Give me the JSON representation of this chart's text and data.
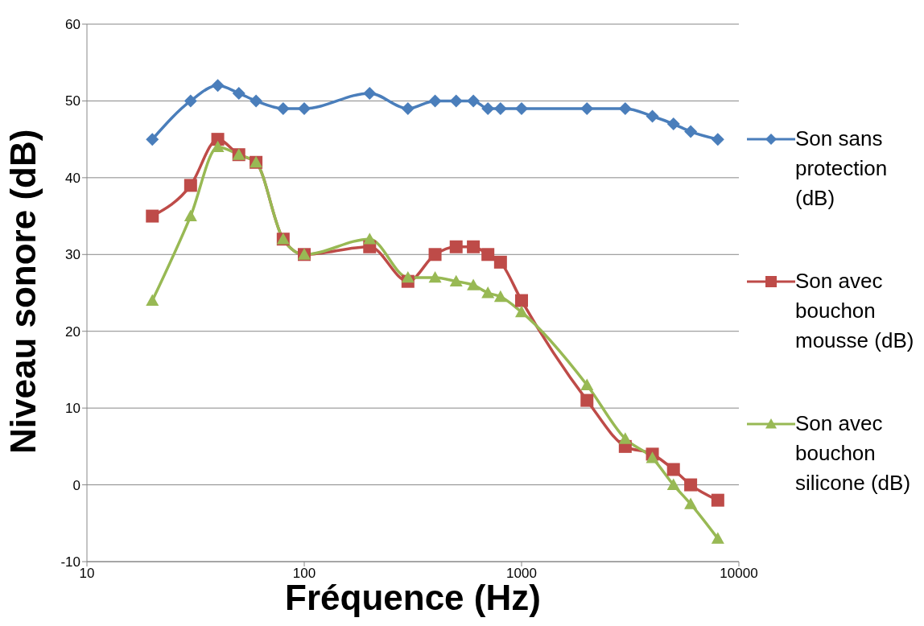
{
  "chart_data": {
    "type": "line",
    "xlabel": "Fréquence (Hz)",
    "ylabel": "Niveau sonore (dB)",
    "x": [
      20,
      30,
      40,
      50,
      60,
      80,
      100,
      200,
      300,
      400,
      500,
      600,
      700,
      800,
      1000,
      2000,
      3000,
      4000,
      5000,
      6000,
      8000
    ],
    "series": [
      {
        "name": "Son sans protection (dB)",
        "color": "#4a7ebb",
        "marker": "diamond",
        "values": [
          45,
          50,
          52,
          51,
          50,
          49,
          49,
          51,
          49,
          50,
          50,
          50,
          49,
          49,
          49,
          49,
          49,
          48,
          47,
          46,
          45
        ]
      },
      {
        "name": "Son avec bouchon mousse (dB)",
        "color": "#be4b48",
        "marker": "square",
        "values": [
          35,
          39,
          45,
          43,
          42,
          32,
          30,
          31,
          26.5,
          30,
          31,
          31,
          30,
          29,
          24,
          11,
          5,
          4,
          2,
          0,
          -2
        ]
      },
      {
        "name": "Son avec bouchon silicone (dB)",
        "color": "#98b954",
        "marker": "triangle",
        "values": [
          24,
          35,
          44,
          43,
          42,
          32,
          30,
          32,
          27,
          27,
          26.5,
          26,
          25,
          24.5,
          22.5,
          13,
          6,
          3.5,
          0,
          -2.5,
          -7
        ]
      }
    ],
    "log": "x",
    "xlim": [
      10,
      10000
    ],
    "xticks": [
      10,
      100,
      1000,
      10000
    ],
    "ylim": [
      -10,
      60
    ],
    "yticks": [
      -10,
      0,
      10,
      20,
      30,
      40,
      50,
      60
    ],
    "grid": "y",
    "legend": "right"
  }
}
